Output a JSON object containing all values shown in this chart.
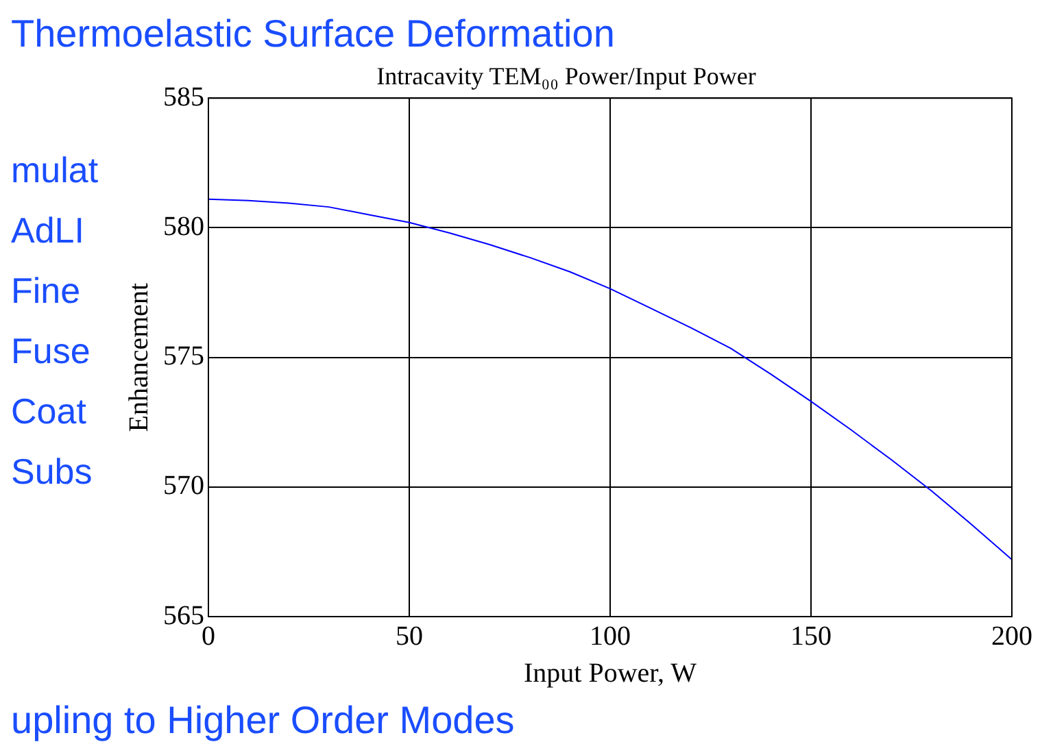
{
  "chart_data": {
    "type": "line",
    "title": "Intracavity TEM₀₀ Power/Input Power",
    "xlabel": "Input Power, W",
    "ylabel": "Enhancement",
    "x": [
      0,
      10,
      20,
      30,
      40,
      50,
      60,
      70,
      80,
      90,
      100,
      110,
      120,
      130,
      140,
      150,
      160,
      170,
      180,
      190,
      200
    ],
    "series": [
      {
        "color": "#0000ff",
        "values": [
          581.1,
          581.05,
          580.95,
          580.8,
          580.5,
          580.2,
          579.8,
          579.35,
          578.85,
          578.3,
          577.65,
          576.9,
          576.15,
          575.35,
          574.35,
          573.3,
          572.2,
          571.05,
          569.85,
          568.55,
          567.2
        ]
      }
    ],
    "xlim": [
      0,
      200
    ],
    "xticks": [
      0,
      50,
      100,
      150,
      200
    ],
    "ylim": [
      565,
      585
    ],
    "yticks": [
      565,
      570,
      575,
      580,
      585
    ],
    "grid": true,
    "legend": false,
    "marker": "none",
    "line_style": "solid",
    "annotations": [
      "Thermoelastic Surface Deformation",
      "mulat",
      "AdLI",
      "Fine",
      "Fuse",
      "Coat",
      "Subs",
      "upling to Higher Order Modes"
    ]
  }
}
